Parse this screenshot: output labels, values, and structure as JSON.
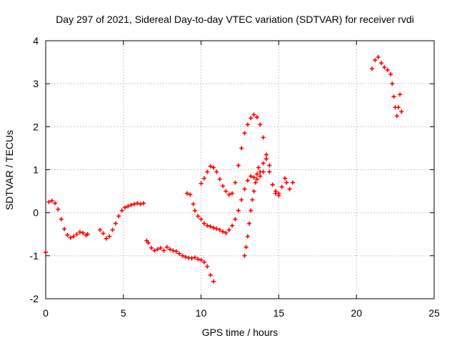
{
  "chart_data": {
    "type": "scatter",
    "title": "Day 297 of 2021, Sidereal Day-to-day VTEC variation (SDTVAR) for receiver rvdi",
    "xlabel": "GPS time / hours",
    "ylabel": "SDTVAR / TECUs",
    "xlim": [
      0,
      25
    ],
    "ylim": [
      -2,
      4
    ],
    "x_ticks": [
      0,
      5,
      10,
      15,
      20,
      25
    ],
    "y_ticks": [
      -2,
      -1,
      0,
      1,
      2,
      3,
      4
    ],
    "x_tick_labels": [
      "0",
      "5",
      "10",
      "15",
      "20",
      "25"
    ],
    "y_tick_labels": [
      "-2",
      "-1",
      "0",
      "1",
      "2",
      "3",
      "4"
    ],
    "grid": true,
    "marker": "+",
    "series_color": "#ff0000",
    "series": [
      {
        "points": [
          [
            0.0,
            -0.92
          ],
          [
            0.2,
            0.25
          ],
          [
            0.4,
            0.28
          ],
          [
            0.6,
            0.22
          ],
          [
            0.8,
            0.08
          ],
          [
            1.0,
            -0.15
          ],
          [
            1.2,
            -0.38
          ],
          [
            1.4,
            -0.52
          ],
          [
            1.6,
            -0.58
          ],
          [
            1.8,
            -0.55
          ],
          [
            2.0,
            -0.5
          ],
          [
            2.2,
            -0.45
          ],
          [
            2.4,
            -0.47
          ],
          [
            2.6,
            -0.52
          ],
          [
            2.7,
            -0.5
          ],
          [
            3.5,
            -0.4
          ],
          [
            3.7,
            -0.48
          ],
          [
            3.9,
            -0.6
          ],
          [
            4.1,
            -0.55
          ],
          [
            4.3,
            -0.4
          ],
          [
            4.5,
            -0.25
          ],
          [
            4.7,
            -0.08
          ],
          [
            4.9,
            0.05
          ],
          [
            5.1,
            0.12
          ],
          [
            5.3,
            0.15
          ],
          [
            5.5,
            0.18
          ],
          [
            5.7,
            0.2
          ],
          [
            5.9,
            0.22
          ],
          [
            6.1,
            0.2
          ],
          [
            6.3,
            0.22
          ],
          [
            6.5,
            -0.65
          ],
          [
            6.6,
            -0.7
          ],
          [
            6.8,
            -0.82
          ],
          [
            7.0,
            -0.88
          ],
          [
            7.2,
            -0.85
          ],
          [
            7.4,
            -0.82
          ],
          [
            7.6,
            -0.88
          ],
          [
            7.8,
            -0.8
          ],
          [
            8.0,
            -0.85
          ],
          [
            8.2,
            -0.88
          ],
          [
            8.4,
            -0.9
          ],
          [
            8.6,
            -0.95
          ],
          [
            8.8,
            -1.0
          ],
          [
            9.0,
            -1.03
          ],
          [
            9.2,
            -1.05
          ],
          [
            9.4,
            -1.06
          ],
          [
            9.6,
            -1.04
          ],
          [
            9.8,
            -1.08
          ],
          [
            10.0,
            -1.1
          ],
          [
            10.2,
            -1.15
          ],
          [
            10.4,
            -1.25
          ],
          [
            10.6,
            -1.45
          ],
          [
            10.8,
            -1.6
          ],
          [
            9.1,
            0.45
          ],
          [
            9.3,
            0.42
          ],
          [
            9.5,
            0.2
          ],
          [
            9.6,
            0.05
          ],
          [
            9.8,
            -0.08
          ],
          [
            10.0,
            -0.15
          ],
          [
            10.2,
            -0.25
          ],
          [
            10.4,
            -0.3
          ],
          [
            10.6,
            -0.32
          ],
          [
            10.8,
            -0.35
          ],
          [
            11.0,
            -0.37
          ],
          [
            11.2,
            -0.4
          ],
          [
            11.4,
            -0.44
          ],
          [
            11.6,
            -0.47
          ],
          [
            11.8,
            -0.4
          ],
          [
            12.0,
            -0.3
          ],
          [
            12.2,
            -0.15
          ],
          [
            12.4,
            0.05
          ],
          [
            12.6,
            0.3
          ],
          [
            12.8,
            0.55
          ],
          [
            13.0,
            0.75
          ],
          [
            13.2,
            0.85
          ],
          [
            13.4,
            0.82
          ],
          [
            13.6,
            0.78
          ],
          [
            13.8,
            0.85
          ],
          [
            14.0,
            0.95
          ],
          [
            10.0,
            0.68
          ],
          [
            10.2,
            0.8
          ],
          [
            10.4,
            0.95
          ],
          [
            10.6,
            1.08
          ],
          [
            10.8,
            1.05
          ],
          [
            11.0,
            0.95
          ],
          [
            11.2,
            0.78
          ],
          [
            11.4,
            0.62
          ],
          [
            11.6,
            0.5
          ],
          [
            11.8,
            0.42
          ],
          [
            12.0,
            0.45
          ],
          [
            12.2,
            0.7
          ],
          [
            12.4,
            1.1
          ],
          [
            12.6,
            1.5
          ],
          [
            12.8,
            1.85
          ],
          [
            13.0,
            2.05
          ],
          [
            13.2,
            2.2
          ],
          [
            13.4,
            2.28
          ],
          [
            13.6,
            2.22
          ],
          [
            13.8,
            2.05
          ],
          [
            14.0,
            1.75
          ],
          [
            14.2,
            1.35
          ],
          [
            14.4,
            0.95
          ],
          [
            14.6,
            0.65
          ],
          [
            14.8,
            0.45
          ],
          [
            15.0,
            0.4
          ],
          [
            12.8,
            -1.0
          ],
          [
            12.9,
            -0.8
          ],
          [
            13.0,
            -0.55
          ],
          [
            13.1,
            -0.25
          ],
          [
            13.2,
            0.05
          ],
          [
            13.3,
            0.3
          ],
          [
            13.4,
            0.5
          ],
          [
            13.5,
            0.7
          ],
          [
            13.6,
            0.9
          ],
          [
            13.7,
            1.05
          ],
          [
            13.8,
            0.95
          ],
          [
            14.0,
            1.15
          ],
          [
            14.2,
            1.25
          ],
          [
            14.4,
            1.1
          ],
          [
            14.6,
            0.65
          ],
          [
            14.8,
            0.5
          ],
          [
            15.0,
            0.45
          ],
          [
            15.2,
            0.6
          ],
          [
            15.4,
            0.8
          ],
          [
            15.5,
            0.7
          ],
          [
            15.7,
            0.55
          ],
          [
            15.9,
            0.7
          ],
          [
            21.0,
            3.35
          ],
          [
            21.2,
            3.55
          ],
          [
            21.4,
            3.62
          ],
          [
            21.6,
            3.48
          ],
          [
            21.8,
            3.38
          ],
          [
            22.0,
            3.32
          ],
          [
            22.2,
            3.22
          ],
          [
            22.3,
            3.0
          ],
          [
            22.4,
            2.7
          ],
          [
            22.5,
            2.45
          ],
          [
            22.6,
            2.25
          ],
          [
            22.7,
            2.45
          ],
          [
            22.8,
            2.75
          ],
          [
            22.9,
            2.35
          ]
        ]
      }
    ]
  }
}
